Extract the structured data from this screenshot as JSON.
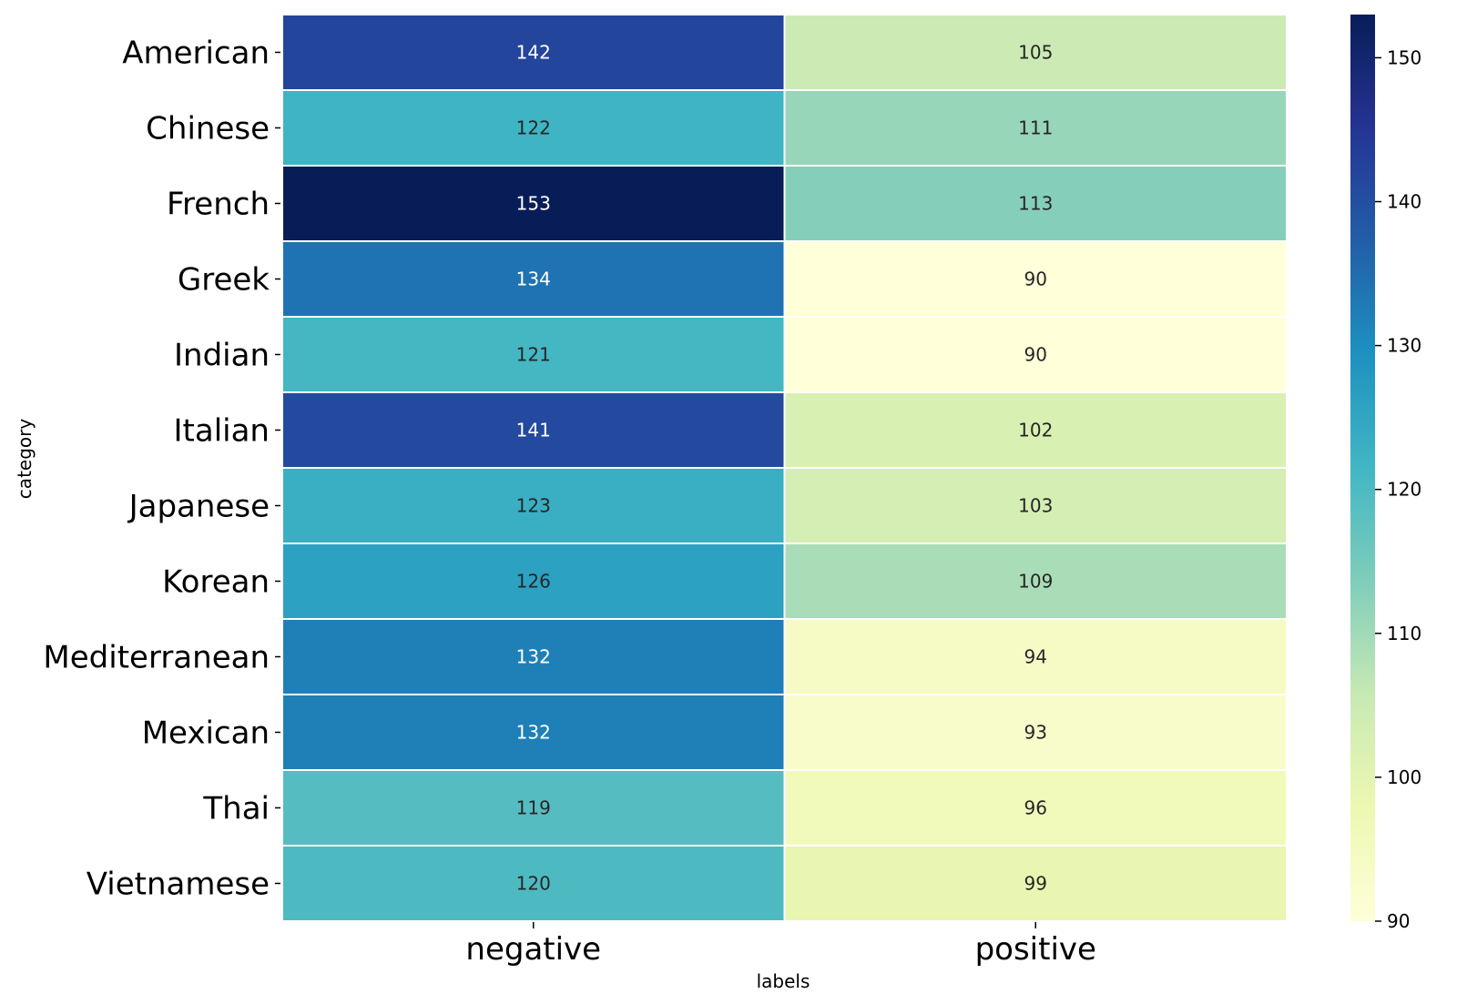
{
  "chart_data": {
    "type": "heatmap",
    "title": "",
    "xlabel": "labels",
    "ylabel": "category",
    "columns": [
      "negative",
      "positive"
    ],
    "rows": [
      "American",
      "Chinese",
      "French",
      "Greek",
      "Indian",
      "Italian",
      "Japanese",
      "Korean",
      "Mediterranean",
      "Mexican",
      "Thai",
      "Vietnamese"
    ],
    "values": [
      [
        142,
        105
      ],
      [
        122,
        111
      ],
      [
        153,
        113
      ],
      [
        134,
        90
      ],
      [
        121,
        90
      ],
      [
        141,
        102
      ],
      [
        123,
        103
      ],
      [
        126,
        109
      ],
      [
        132,
        94
      ],
      [
        132,
        93
      ],
      [
        119,
        96
      ],
      [
        120,
        99
      ]
    ],
    "colormap": "YlGnBu",
    "vmin": 90,
    "vmax": 153,
    "colorbar_ticks": [
      90,
      100,
      110,
      120,
      130,
      140,
      150
    ],
    "annotated": true,
    "grid": false,
    "colorbar_position": "right"
  }
}
